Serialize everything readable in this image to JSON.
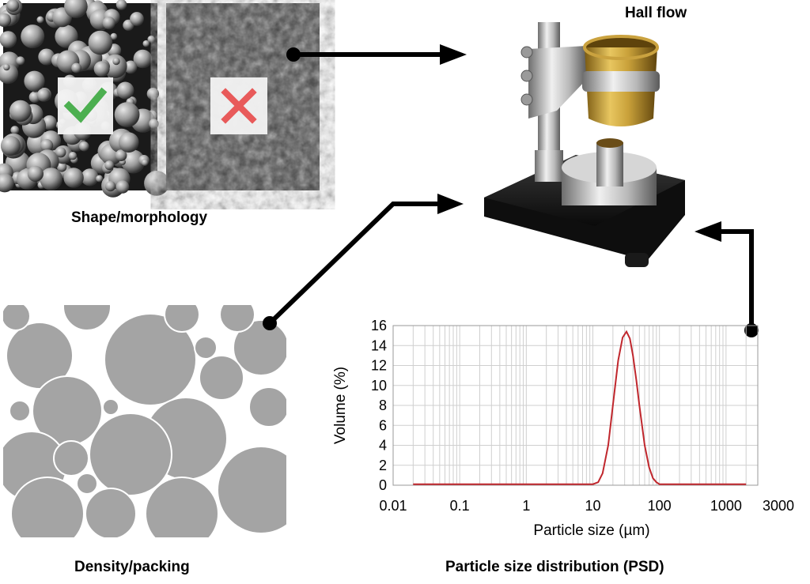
{
  "labels": {
    "hall_flow": "Hall flow",
    "shape": "Shape/morphology",
    "density": "Density/packing",
    "psd": "Particle size distribution (PSD)"
  },
  "badges": {
    "good_icon": "check-icon",
    "bad_icon": "cross-icon",
    "good_color": "#4caf50",
    "bad_color": "#e85a5a"
  },
  "chart_data": {
    "type": "line",
    "x_scale": "log",
    "xlabel": "Particle size (µm)",
    "ylabel": "Volume (%)",
    "xlim": [
      0.01,
      3000
    ],
    "ylim": [
      0,
      16
    ],
    "x_ticks": [
      "0.01",
      "0.1",
      "1",
      "10",
      "100",
      "1000",
      "3000"
    ],
    "y_ticks": [
      "0",
      "2",
      "4",
      "6",
      "8",
      "10",
      "12",
      "14",
      "16"
    ],
    "grid": true,
    "line_color": "#c0272d",
    "series": [
      {
        "x": [
          0.02,
          0.1,
          1,
          10,
          12,
          14,
          17,
          20,
          24,
          28,
          32,
          36,
          40,
          45,
          50,
          60,
          70,
          80,
          90,
          100,
          1000,
          2000
        ],
        "values": [
          0.1,
          0.1,
          0.1,
          0.1,
          0.3,
          1.2,
          4.0,
          8.0,
          12.5,
          14.8,
          15.4,
          14.7,
          13.0,
          10.5,
          8.0,
          4.0,
          1.8,
          0.7,
          0.3,
          0.1,
          0.1,
          0.1
        ]
      }
    ]
  }
}
